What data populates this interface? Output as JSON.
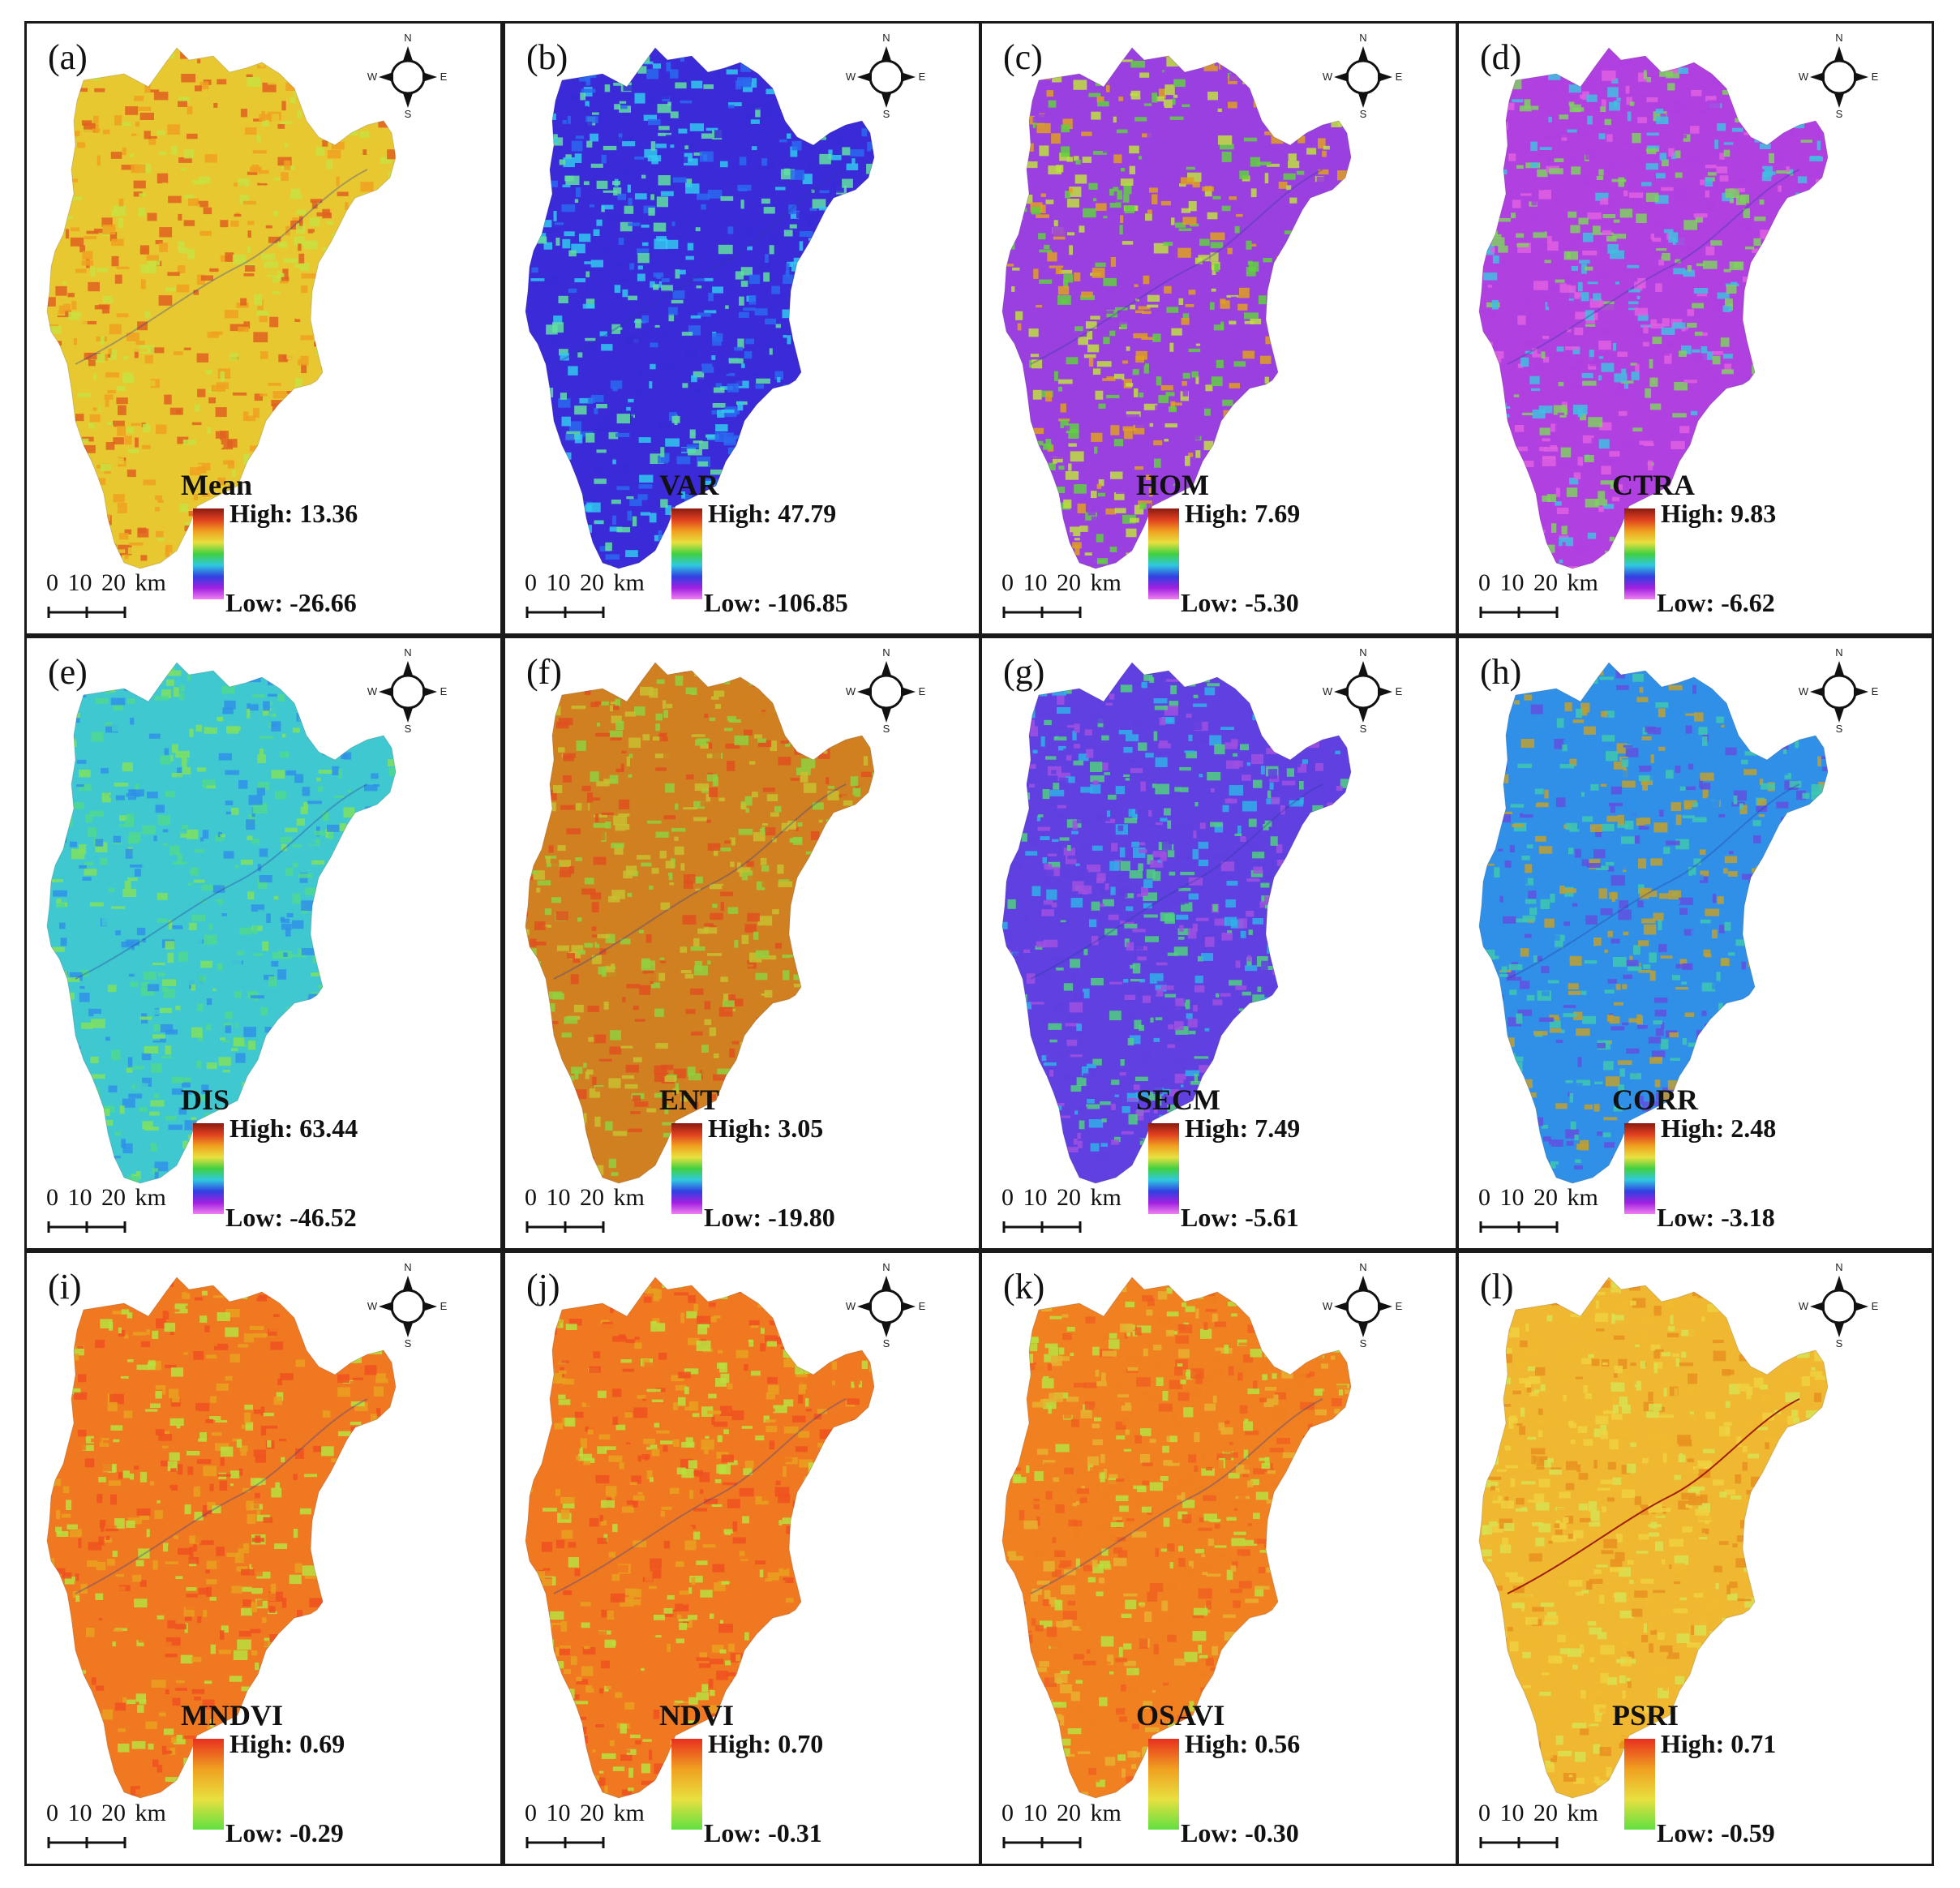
{
  "scale": {
    "ticks": [
      "0",
      "10",
      "20"
    ],
    "unit": "km"
  },
  "compass": {
    "n": "N",
    "s": "S",
    "e": "E",
    "w": "W"
  },
  "panels": [
    {
      "letter": "(a)",
      "name": "Mean",
      "high": "High: 13.36",
      "low": "Low: -26.66",
      "ramp": "rainbow",
      "base": [
        "#e8c830",
        "#f0a020",
        "#c8e040",
        "#e06020"
      ]
    },
    {
      "letter": "(b)",
      "name": "VAR",
      "high": "High: 47.79",
      "low": "Low: -106.85",
      "ramp": "rainbow",
      "base": [
        "#3a2ad8",
        "#2a6af0",
        "#30c8f0",
        "#60e0a0"
      ]
    },
    {
      "letter": "(c)",
      "name": "HOM",
      "high": "High: 7.69",
      "low": "Low: -5.30",
      "ramp": "rainbow",
      "base": [
        "#9a40e0",
        "#60d040",
        "#c0e040",
        "#e0a020"
      ]
    },
    {
      "letter": "(d)",
      "name": "CTRA",
      "high": "High: 9.83",
      "low": "Low: -6.62",
      "ramp": "rainbow",
      "base": [
        "#b040e0",
        "#e060e0",
        "#80d060",
        "#40c0e0"
      ]
    },
    {
      "letter": "(e)",
      "name": "DIS",
      "high": "High: 63.44",
      "low": "Low: -46.52",
      "ramp": "rainbow",
      "base": [
        "#40c8d0",
        "#50d890",
        "#3090e8",
        "#80e060"
      ]
    },
    {
      "letter": "(f)",
      "name": "ENT",
      "high": "High: 3.05",
      "low": "Low: -19.80",
      "ramp": "rainbow",
      "base": [
        "#d08020",
        "#c8c030",
        "#e05020",
        "#90d040"
      ]
    },
    {
      "letter": "(g)",
      "name": "SECM",
      "high": "High: 7.49",
      "low": "Low: -5.61",
      "ramp": "rainbow",
      "base": [
        "#6040e0",
        "#a050e0",
        "#30b0e8",
        "#50d080"
      ]
    },
    {
      "letter": "(h)",
      "name": "CORR",
      "high": "High: 2.48",
      "low": "Low: -3.18",
      "ramp": "rainbow",
      "base": [
        "#3090e8",
        "#40c8b0",
        "#6050e0",
        "#c0a030"
      ]
    },
    {
      "letter": "(i)",
      "name": "MNDVI",
      "high": "High: 0.69",
      "low": "Low: -0.29",
      "ramp": "rg",
      "base": [
        "#f07820",
        "#e8a020",
        "#f05020",
        "#b8e040"
      ]
    },
    {
      "letter": "(j)",
      "name": "NDVI",
      "high": "High: 0.70",
      "low": "Low: -0.31",
      "ramp": "rg",
      "base": [
        "#f07820",
        "#e8a020",
        "#f05020",
        "#b8e040"
      ]
    },
    {
      "letter": "(k)",
      "name": "OSAVI",
      "high": "High: 0.56",
      "low": "Low: -0.30",
      "ramp": "rg",
      "base": [
        "#f08020",
        "#e8b030",
        "#f06020",
        "#b8e040"
      ]
    },
    {
      "letter": "(l)",
      "name": "PSRI",
      "high": "High: 0.71",
      "low": "Low: -0.59",
      "ramp": "rg",
      "base": [
        "#f0b830",
        "#f0d040",
        "#e89020",
        "#d8e050"
      ]
    }
  ]
}
